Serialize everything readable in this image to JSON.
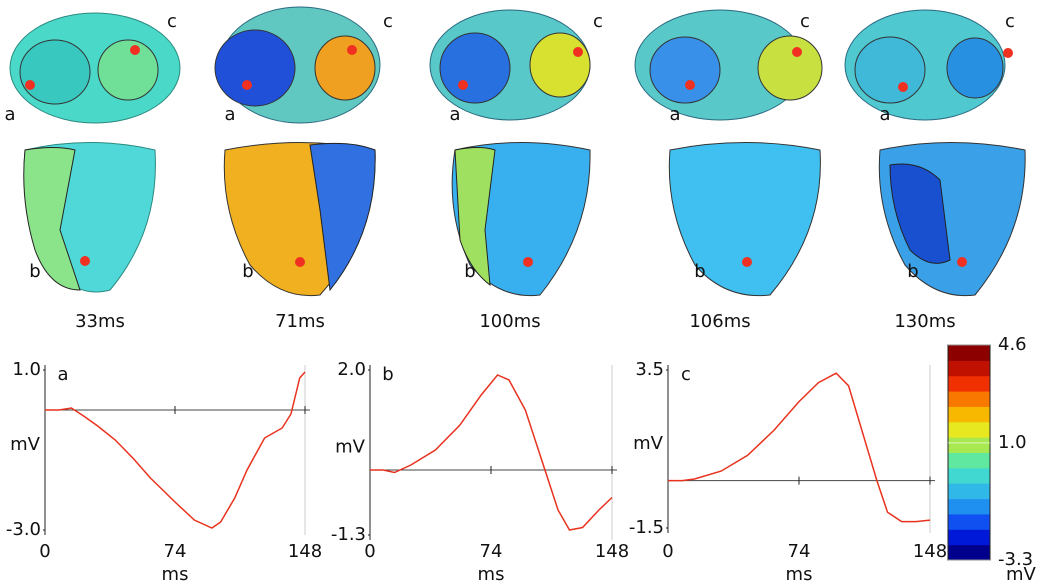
{
  "hearts": [
    {
      "time": "33ms"
    },
    {
      "time": "71ms"
    },
    {
      "time": "100ms"
    },
    {
      "time": "106ms"
    },
    {
      "time": "130ms"
    }
  ],
  "point_labels": {
    "a": "a",
    "b": "b",
    "c": "c"
  },
  "chart_data": [
    {
      "type": "line",
      "title": "a",
      "xlabel": "ms",
      "ylabel": "mV",
      "x": [
        0,
        8,
        15,
        22,
        30,
        40,
        50,
        60,
        74,
        85,
        95,
        100,
        108,
        115,
        125,
        135,
        140,
        145,
        148
      ],
      "series": [
        {
          "color": "#e8321e",
          "values": [
            0,
            0,
            0.05,
            -0.15,
            -0.4,
            -0.75,
            -1.2,
            -1.7,
            -2.3,
            -2.75,
            -2.95,
            -2.8,
            -2.2,
            -1.5,
            -0.7,
            -0.45,
            -0.1,
            0.8,
            0.95
          ]
        }
      ],
      "xlim": [
        0,
        148
      ],
      "xticks": [
        0,
        74,
        148
      ],
      "ylim": [
        -3.0,
        1.0
      ],
      "yticks": [
        {
          "value": -3.0,
          "label": "-3.0"
        },
        {
          "value": 1.0,
          "label": "1.0"
        }
      ]
    },
    {
      "type": "line",
      "title": "b",
      "xlabel": "ms",
      "ylabel": "mV",
      "x": [
        0,
        8,
        15,
        25,
        40,
        55,
        68,
        78,
        85,
        95,
        105,
        115,
        122,
        130,
        140,
        148
      ],
      "series": [
        {
          "color": "#e8321e",
          "values": [
            0,
            0,
            -0.05,
            0.1,
            0.4,
            0.9,
            1.5,
            1.9,
            1.8,
            1.2,
            0.2,
            -0.8,
            -1.2,
            -1.15,
            -0.8,
            -0.55
          ]
        }
      ],
      "xlim": [
        0,
        148
      ],
      "xticks": [
        0,
        74,
        148
      ],
      "ylim": [
        -1.3,
        2.0
      ],
      "yticks": [
        {
          "value": -1.3,
          "label": "-1.3"
        },
        {
          "value": 2.0,
          "label": "2.0"
        }
      ]
    },
    {
      "type": "line",
      "title": "c",
      "xlabel": "ms",
      "ylabel": "mV",
      "x": [
        0,
        8,
        15,
        30,
        45,
        60,
        74,
        85,
        95,
        102,
        110,
        118,
        124,
        132,
        140,
        148
      ],
      "series": [
        {
          "color": "#e8321e",
          "values": [
            0,
            0,
            0.05,
            0.3,
            0.8,
            1.6,
            2.5,
            3.1,
            3.4,
            3.0,
            1.5,
            0,
            -1.0,
            -1.3,
            -1.3,
            -1.25
          ]
        }
      ],
      "xlim": [
        0,
        148
      ],
      "xticks": [
        0,
        74,
        148
      ],
      "ylim": [
        -1.5,
        3.5
      ],
      "yticks": [
        {
          "value": -1.5,
          "label": "-1.5"
        },
        {
          "value": 3.5,
          "label": "3.5"
        }
      ]
    },
    {
      "type": "colorbar",
      "label": "mV",
      "colors": [
        "#00008c",
        "#0018d8",
        "#1050f0",
        "#2090f0",
        "#30b8e8",
        "#40d8d0",
        "#60e8a0",
        "#a8e850",
        "#e8e820",
        "#f8b800",
        "#f87800",
        "#f03000",
        "#c01000",
        "#8c0000"
      ],
      "ylim": [
        -3.3,
        4.6
      ],
      "yticks": [
        {
          "value": -3.3,
          "label": "-3.3"
        },
        {
          "value": 1.0,
          "label": "1.0"
        },
        {
          "value": 4.6,
          "label": "4.6"
        }
      ]
    }
  ]
}
